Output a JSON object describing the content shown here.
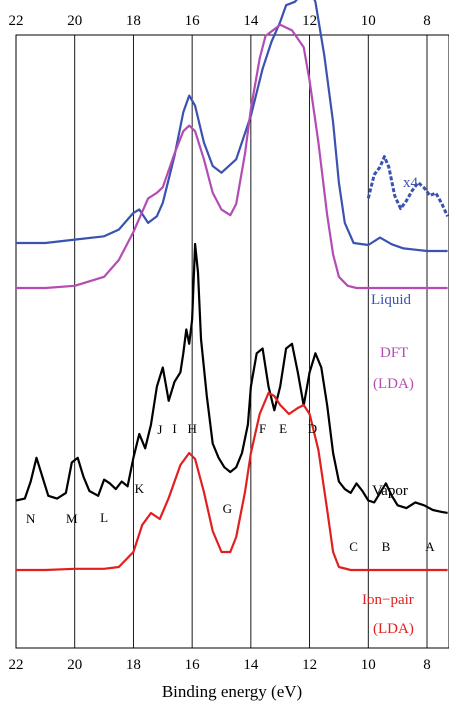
{
  "chart_data": {
    "type": "line",
    "title": "",
    "xlabel": "Binding energy (eV)",
    "ylabel": "",
    "xlim": [
      22,
      7.3
    ],
    "x_reversed": true,
    "xticks": [
      22,
      20,
      18,
      16,
      14,
      12,
      10,
      8
    ],
    "grid": "vertical lines at x ticks",
    "colors": {
      "liquid": "#3a52b0",
      "dft": "#b34db3",
      "vapor": "#000000",
      "ionpair": "#e02020",
      "grid": "#000000"
    },
    "series": [
      {
        "name": "Liquid",
        "points": [
          [
            22,
            1.0
          ],
          [
            21,
            1.0
          ],
          [
            20,
            1.05
          ],
          [
            19,
            1.1
          ],
          [
            18.5,
            1.2
          ],
          [
            18,
            1.45
          ],
          [
            17.8,
            1.5
          ],
          [
            17.5,
            1.3
          ],
          [
            17.2,
            1.4
          ],
          [
            17,
            1.6
          ],
          [
            16.6,
            2.3
          ],
          [
            16.3,
            2.95
          ],
          [
            16.1,
            3.2
          ],
          [
            15.9,
            3.05
          ],
          [
            15.6,
            2.5
          ],
          [
            15.3,
            2.15
          ],
          [
            15,
            2.05
          ],
          [
            14.5,
            2.25
          ],
          [
            14,
            2.9
          ],
          [
            13.6,
            3.6
          ],
          [
            13.3,
            4.0
          ],
          [
            13,
            4.3
          ],
          [
            12.8,
            4.55
          ],
          [
            12.5,
            4.6
          ],
          [
            12.2,
            4.75
          ],
          [
            12.0,
            4.8
          ],
          [
            11.8,
            4.6
          ],
          [
            11.5,
            3.8
          ],
          [
            11.2,
            2.8
          ],
          [
            11,
            1.9
          ],
          [
            10.8,
            1.3
          ],
          [
            10.5,
            1.0
          ],
          [
            10,
            0.97
          ],
          [
            9.6,
            1.08
          ],
          [
            9.2,
            0.98
          ],
          [
            8.8,
            0.92
          ],
          [
            8.4,
            0.9
          ],
          [
            8,
            0.88
          ],
          [
            7.5,
            0.88
          ],
          [
            7.3,
            0.88
          ]
        ]
      },
      {
        "name": "DFT (LDA)",
        "points": [
          [
            22,
            1.0
          ],
          [
            21,
            1.0
          ],
          [
            20,
            1.02
          ],
          [
            19,
            1.1
          ],
          [
            18.5,
            1.25
          ],
          [
            18,
            1.5
          ],
          [
            17.5,
            1.8
          ],
          [
            17.2,
            1.85
          ],
          [
            17,
            1.9
          ],
          [
            16.6,
            2.2
          ],
          [
            16.3,
            2.4
          ],
          [
            16.1,
            2.45
          ],
          [
            15.9,
            2.4
          ],
          [
            15.6,
            2.15
          ],
          [
            15.3,
            1.85
          ],
          [
            15,
            1.7
          ],
          [
            14.7,
            1.65
          ],
          [
            14.5,
            1.75
          ],
          [
            14.2,
            2.2
          ],
          [
            14,
            2.6
          ],
          [
            13.7,
            3.05
          ],
          [
            13.5,
            3.25
          ],
          [
            13,
            3.35
          ],
          [
            12.6,
            3.3
          ],
          [
            12.2,
            3.15
          ],
          [
            12,
            2.85
          ],
          [
            11.7,
            2.3
          ],
          [
            11.4,
            1.65
          ],
          [
            11.2,
            1.3
          ],
          [
            11,
            1.1
          ],
          [
            10.7,
            1.02
          ],
          [
            10.4,
            1.0
          ],
          [
            10,
            1.0
          ],
          [
            9,
            1.0
          ],
          [
            8,
            1.0
          ],
          [
            7.3,
            1.0
          ]
        ]
      },
      {
        "name": "Vapor",
        "points": [
          [
            22,
            0.5
          ],
          [
            21.7,
            0.52
          ],
          [
            21.5,
            0.7
          ],
          [
            21.3,
            0.95
          ],
          [
            21.1,
            0.75
          ],
          [
            20.9,
            0.55
          ],
          [
            20.6,
            0.52
          ],
          [
            20.3,
            0.58
          ],
          [
            20.1,
            0.9
          ],
          [
            19.9,
            0.95
          ],
          [
            19.7,
            0.75
          ],
          [
            19.5,
            0.6
          ],
          [
            19.2,
            0.55
          ],
          [
            19.0,
            0.72
          ],
          [
            18.8,
            0.68
          ],
          [
            18.6,
            0.62
          ],
          [
            18.4,
            0.7
          ],
          [
            18.2,
            0.65
          ],
          [
            18.0,
            0.95
          ],
          [
            17.8,
            1.2
          ],
          [
            17.6,
            1.05
          ],
          [
            17.4,
            1.3
          ],
          [
            17.2,
            1.7
          ],
          [
            17.0,
            1.9
          ],
          [
            16.8,
            1.55
          ],
          [
            16.6,
            1.75
          ],
          [
            16.4,
            1.85
          ],
          [
            16.3,
            2.05
          ],
          [
            16.2,
            2.3
          ],
          [
            16.1,
            2.15
          ],
          [
            16.0,
            2.4
          ],
          [
            15.9,
            3.2
          ],
          [
            15.8,
            2.9
          ],
          [
            15.7,
            2.2
          ],
          [
            15.5,
            1.6
          ],
          [
            15.3,
            1.1
          ],
          [
            15.1,
            0.95
          ],
          [
            14.9,
            0.85
          ],
          [
            14.7,
            0.8
          ],
          [
            14.5,
            0.85
          ],
          [
            14.3,
            1.0
          ],
          [
            14.1,
            1.3
          ],
          [
            14.0,
            1.7
          ],
          [
            13.8,
            2.05
          ],
          [
            13.6,
            2.1
          ],
          [
            13.4,
            1.7
          ],
          [
            13.2,
            1.45
          ],
          [
            13.0,
            1.7
          ],
          [
            12.8,
            2.1
          ],
          [
            12.6,
            2.15
          ],
          [
            12.4,
            1.85
          ],
          [
            12.2,
            1.5
          ],
          [
            12.0,
            1.85
          ],
          [
            11.8,
            2.05
          ],
          [
            11.6,
            1.9
          ],
          [
            11.4,
            1.5
          ],
          [
            11.2,
            1.0
          ],
          [
            11.0,
            0.7
          ],
          [
            10.8,
            0.62
          ],
          [
            10.6,
            0.58
          ],
          [
            10.4,
            0.68
          ],
          [
            10.2,
            0.6
          ],
          [
            10.0,
            0.5
          ],
          [
            9.8,
            0.48
          ],
          [
            9.6,
            0.58
          ],
          [
            9.4,
            0.68
          ],
          [
            9.2,
            0.55
          ],
          [
            9.0,
            0.45
          ],
          [
            8.7,
            0.42
          ],
          [
            8.4,
            0.48
          ],
          [
            8.1,
            0.45
          ],
          [
            7.8,
            0.4
          ],
          [
            7.5,
            0.38
          ],
          [
            7.3,
            0.37
          ]
        ]
      },
      {
        "name": "Ion−pair (LDA)",
        "points": [
          [
            22,
            1.0
          ],
          [
            21,
            1.0
          ],
          [
            20,
            1.02
          ],
          [
            19,
            1.02
          ],
          [
            18.5,
            1.05
          ],
          [
            18,
            1.3
          ],
          [
            17.7,
            1.75
          ],
          [
            17.4,
            1.95
          ],
          [
            17.1,
            1.85
          ],
          [
            16.8,
            2.2
          ],
          [
            16.4,
            2.75
          ],
          [
            16.1,
            2.95
          ],
          [
            15.9,
            2.85
          ],
          [
            15.6,
            2.3
          ],
          [
            15.3,
            1.65
          ],
          [
            15.0,
            1.3
          ],
          [
            14.7,
            1.3
          ],
          [
            14.5,
            1.55
          ],
          [
            14.2,
            2.3
          ],
          [
            14.0,
            2.95
          ],
          [
            13.7,
            3.6
          ],
          [
            13.4,
            3.95
          ],
          [
            13.2,
            3.9
          ],
          [
            13.0,
            3.75
          ],
          [
            12.7,
            3.6
          ],
          [
            12.4,
            3.7
          ],
          [
            12.2,
            3.75
          ],
          [
            12.0,
            3.6
          ],
          [
            11.7,
            3.0
          ],
          [
            11.4,
            2.0
          ],
          [
            11.2,
            1.3
          ],
          [
            11.0,
            1.05
          ],
          [
            10.6,
            1.0
          ],
          [
            10,
            1.0
          ],
          [
            9,
            1.0
          ],
          [
            8,
            1.0
          ],
          [
            7.3,
            1.0
          ]
        ]
      },
      {
        "name": "x4",
        "points": [
          [
            10.0,
            2.15
          ],
          [
            9.8,
            2.6
          ],
          [
            9.6,
            2.75
          ],
          [
            9.45,
            2.95
          ],
          [
            9.3,
            2.75
          ],
          [
            9.1,
            2.2
          ],
          [
            8.9,
            1.95
          ],
          [
            8.7,
            2.1
          ],
          [
            8.5,
            2.3
          ],
          [
            8.3,
            2.45
          ],
          [
            8.1,
            2.35
          ],
          [
            7.9,
            2.2
          ],
          [
            7.7,
            2.25
          ],
          [
            7.5,
            2.05
          ],
          [
            7.3,
            1.8
          ]
        ]
      }
    ],
    "series_labels": {
      "liquid": "Liquid",
      "dft_line1": "DFT",
      "dft_line2": "(LDA)",
      "vapor": "Vapor",
      "ionpair_line1": "Ion−pair",
      "ionpair_line2": "(LDA)",
      "x4": "x4"
    },
    "peak_labels": [
      {
        "text": "N",
        "x": 21.5
      },
      {
        "text": "M",
        "x": 20.1
      },
      {
        "text": "L",
        "x": 19.0
      },
      {
        "text": "K",
        "x": 17.8
      },
      {
        "text": "J",
        "x": 17.1
      },
      {
        "text": "I",
        "x": 16.6
      },
      {
        "text": "H",
        "x": 16.0
      },
      {
        "text": "G",
        "x": 14.8
      },
      {
        "text": "F",
        "x": 13.6
      },
      {
        "text": "E",
        "x": 12.9
      },
      {
        "text": "D",
        "x": 11.9
      },
      {
        "text": "C",
        "x": 10.5
      },
      {
        "text": "B",
        "x": 9.4
      },
      {
        "text": "A",
        "x": 7.9
      }
    ]
  }
}
